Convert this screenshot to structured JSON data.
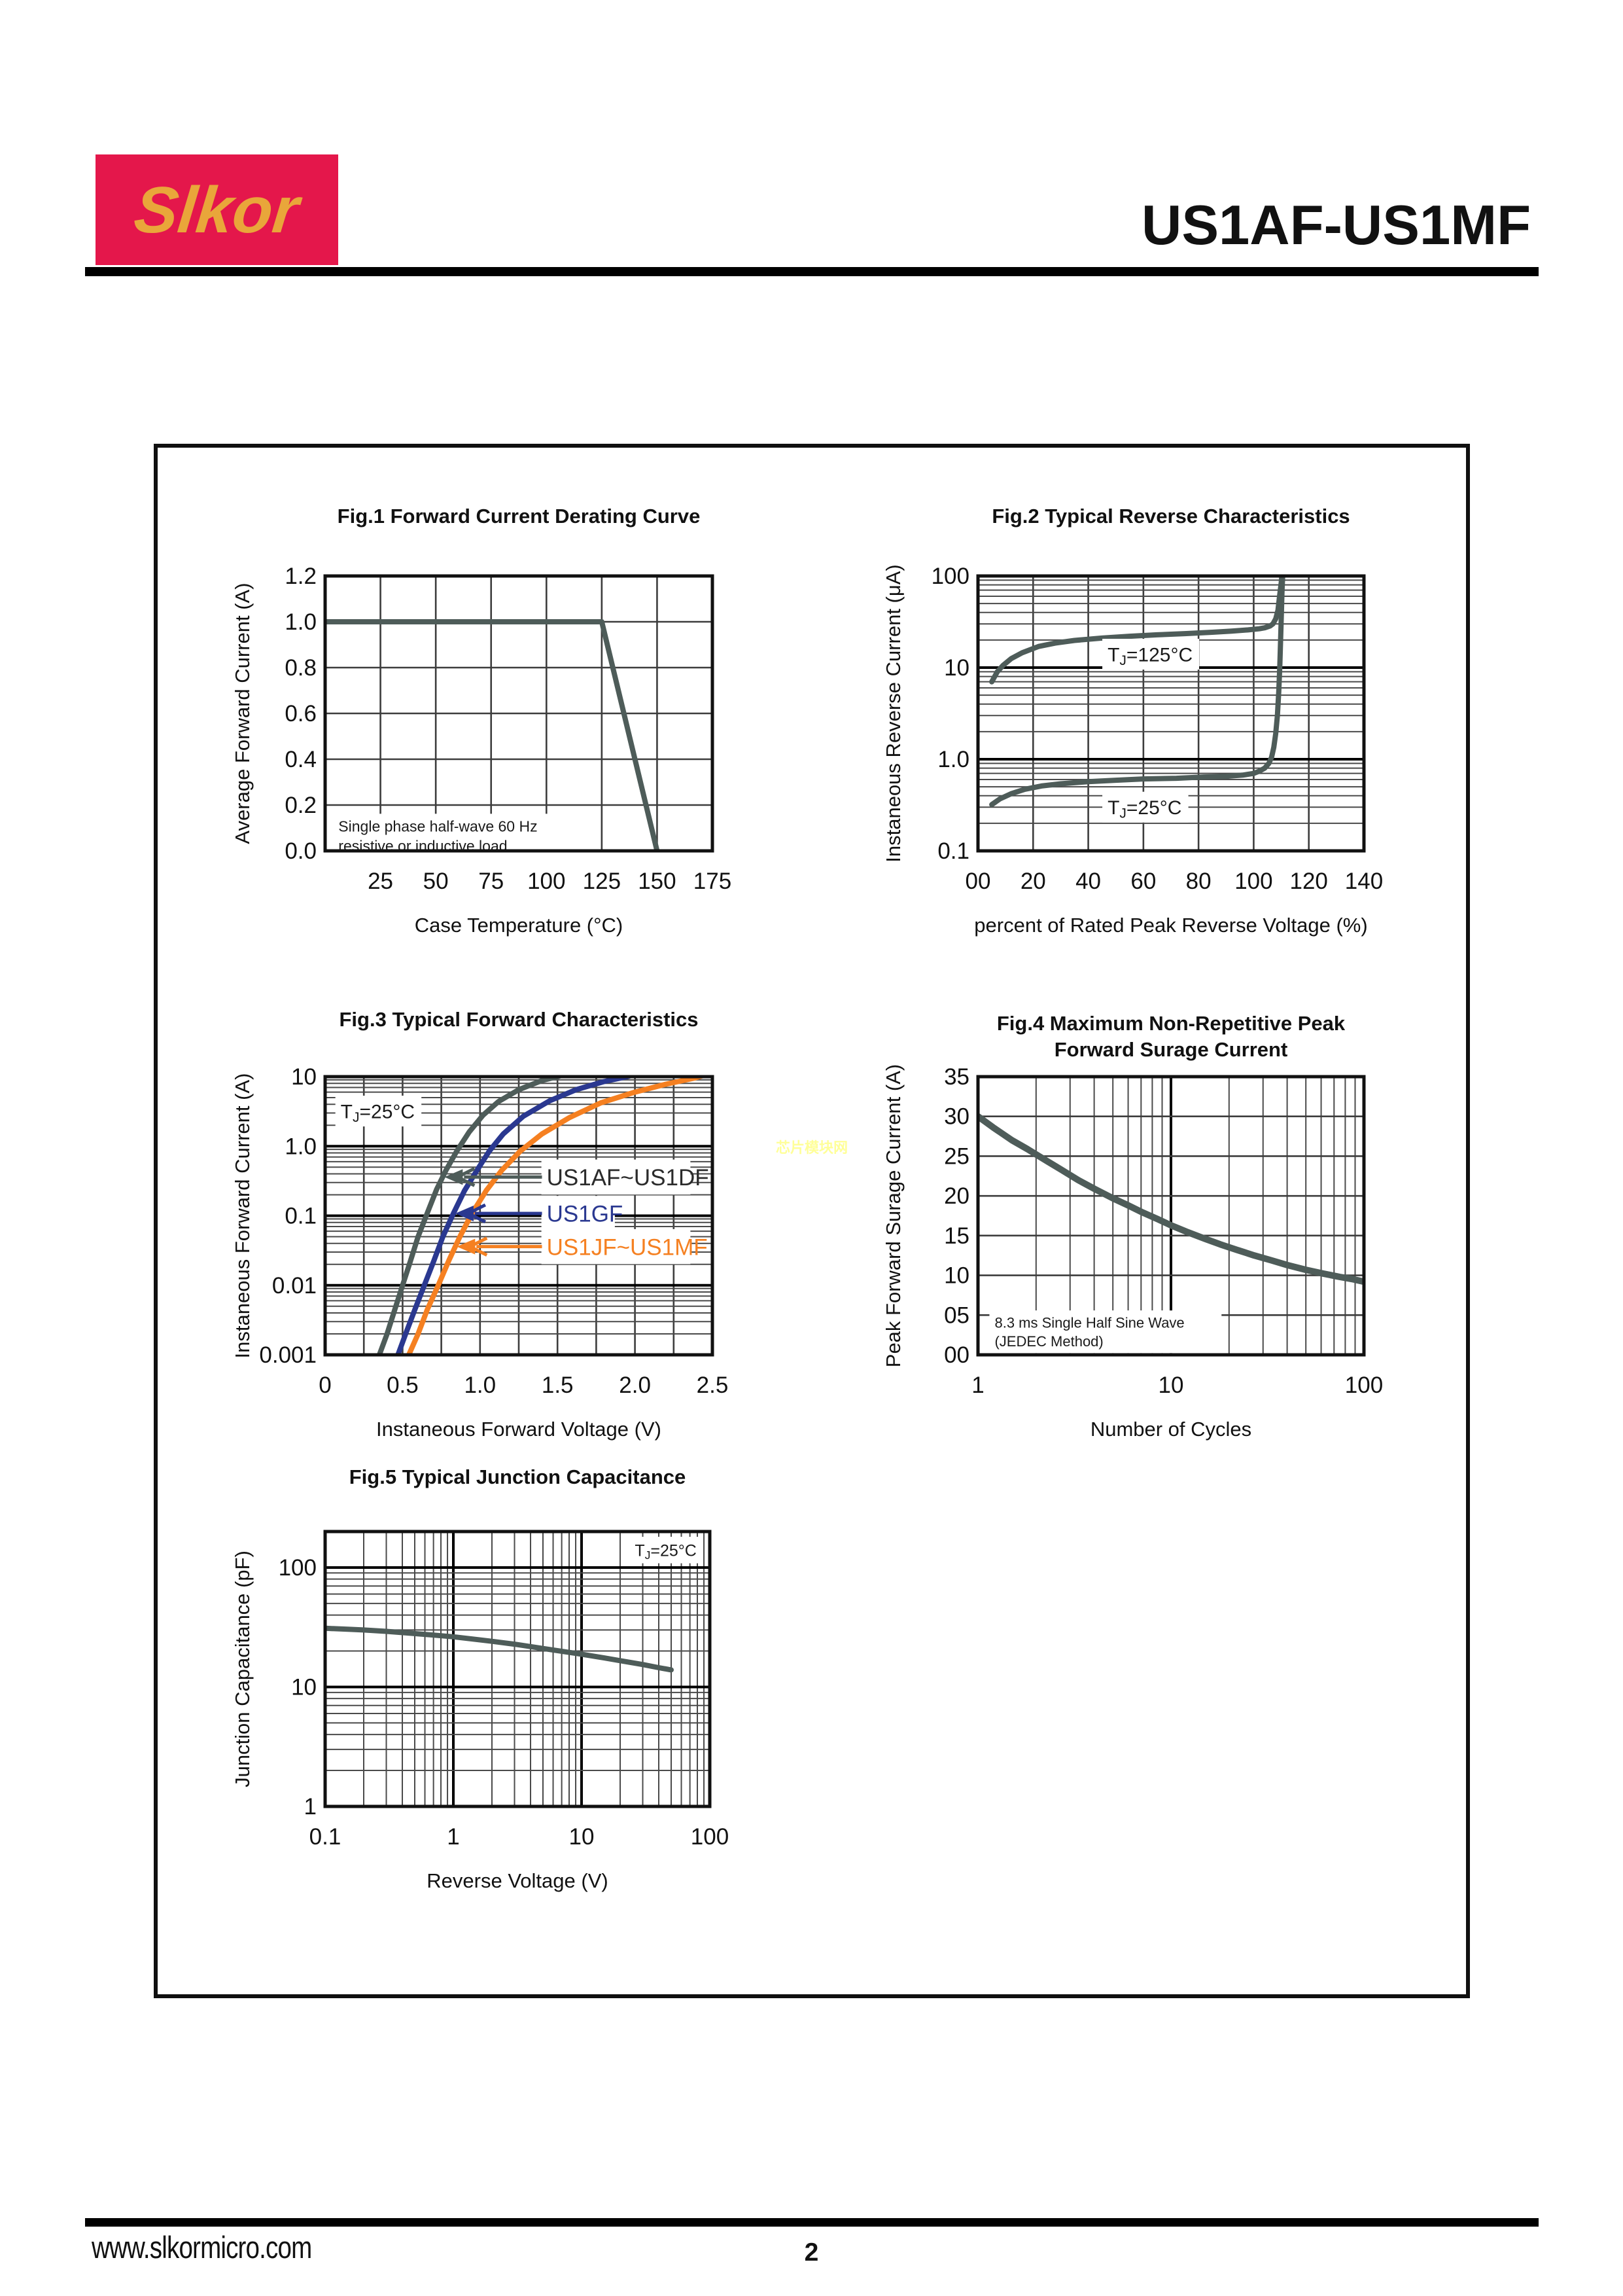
{
  "page": {
    "header": {
      "logo_text": "Slkor",
      "title": "US1AF-US1MF"
    },
    "footer": {
      "website": "www.slkormicro.com",
      "page_number": "2"
    },
    "watermark": "芯片模块网",
    "colors": {
      "logo_red": "#E4174B",
      "logo_yellow": "#E9A63A",
      "curve_dark": "#4E5C59",
      "curve_blue": "#2A3890",
      "curve_orange": "#F58021",
      "grid_medium": "#3D3D3D",
      "grid_minor": "#4A4A4A",
      "decade_line": "#000000",
      "watermark_yellow": "#FFFF99"
    }
  },
  "chart_data": [
    {
      "id": "fig1",
      "type": "line",
      "title_lines": [
        "Fig.1  Forward Current Derating Curve"
      ],
      "x": {
        "scale": "linear",
        "min": 0,
        "max": 175,
        "grid_step": 25,
        "title": "Case Temperature (°C)",
        "ticks": [
          [
            25,
            "25"
          ],
          [
            50,
            "50"
          ],
          [
            75,
            "75"
          ],
          [
            100,
            "100"
          ],
          [
            125,
            "125"
          ],
          [
            150,
            "150"
          ],
          [
            175,
            "175"
          ]
        ]
      },
      "y": {
        "scale": "linear",
        "min": 0,
        "max": 1.2,
        "grid_step": 0.2,
        "title": "Average Forward Current  (A)",
        "ticks": [
          [
            0,
            "0.0"
          ],
          [
            0.2,
            "0.2"
          ],
          [
            0.4,
            "0.4"
          ],
          [
            0.6,
            "0.6"
          ],
          [
            0.8,
            "0.8"
          ],
          [
            1.0,
            "1.0"
          ],
          [
            1.2,
            "1.2"
          ]
        ]
      },
      "series": [
        {
          "name": "average-forward-current",
          "color": "#4E5C59",
          "width": 8,
          "points": [
            [
              0,
              1.0
            ],
            [
              125,
              1.0
            ],
            [
              150,
              0
            ]
          ]
        }
      ],
      "annotations": [
        {
          "lines": [
            "Single phase half-wave 60 Hz",
            "resistive or inductive load"
          ],
          "x": 6,
          "y": 0.065,
          "size": 23,
          "bg": true
        }
      ]
    },
    {
      "id": "fig2",
      "type": "line",
      "title_lines": [
        "Fig.2  Typical Reverse Characteristics"
      ],
      "x": {
        "scale": "linear",
        "min": 0,
        "max": 140,
        "grid_step": 20,
        "title": "percent of Rated  Peak Reverse Voltage (%)",
        "ticks": [
          [
            0,
            "00"
          ],
          [
            20,
            "20"
          ],
          [
            40,
            "40"
          ],
          [
            60,
            "60"
          ],
          [
            80,
            "80"
          ],
          [
            100,
            "100"
          ],
          [
            120,
            "120"
          ],
          [
            140,
            "140"
          ]
        ]
      },
      "y": {
        "scale": "log",
        "min": 0.1,
        "max": 100,
        "title": "Instaneous Reverse Current (μA)",
        "ticks": [
          [
            100,
            "100"
          ],
          [
            10,
            "10"
          ],
          [
            1,
            "1.0"
          ],
          [
            0.1,
            "0.1"
          ]
        ]
      },
      "series": [
        {
          "name": "reverse-current-tj-125c",
          "color": "#4E5C59",
          "width": 8,
          "points": [
            [
              5,
              7
            ],
            [
              7,
              9
            ],
            [
              9,
              10.5
            ],
            [
              12,
              12.5
            ],
            [
              16,
              14.5
            ],
            [
              22,
              17
            ],
            [
              28,
              18.5
            ],
            [
              35,
              19.8
            ],
            [
              45,
              21
            ],
            [
              55,
              22
            ],
            [
              65,
              22.8
            ],
            [
              75,
              23.5
            ],
            [
              85,
              24.3
            ],
            [
              92,
              25
            ],
            [
              98,
              25.8
            ],
            [
              102,
              26.5
            ],
            [
              104,
              27.2
            ],
            [
              106,
              28.5
            ],
            [
              107,
              30
            ],
            [
              108,
              34
            ],
            [
              108.8,
              42
            ],
            [
              109.4,
              60
            ],
            [
              110,
              85
            ],
            [
              110.4,
              115
            ]
          ]
        },
        {
          "name": "reverse-current-tj-25c",
          "color": "#4E5C59",
          "width": 8,
          "points": [
            [
              5,
              0.32
            ],
            [
              8,
              0.37
            ],
            [
              12,
              0.42
            ],
            [
              17,
              0.47
            ],
            [
              23,
              0.51
            ],
            [
              30,
              0.54
            ],
            [
              40,
              0.57
            ],
            [
              50,
              0.59
            ],
            [
              60,
              0.61
            ],
            [
              72,
              0.62
            ],
            [
              82,
              0.64
            ],
            [
              90,
              0.65
            ],
            [
              96,
              0.67
            ],
            [
              100,
              0.7
            ],
            [
              102,
              0.74
            ],
            [
              104,
              0.8
            ],
            [
              105.5,
              0.9
            ],
            [
              106.5,
              1.05
            ],
            [
              107.3,
              1.35
            ],
            [
              108,
              1.9
            ],
            [
              108.6,
              3
            ],
            [
              109.1,
              5.5
            ],
            [
              109.5,
              11
            ],
            [
              109.9,
              28
            ],
            [
              110.3,
              70
            ],
            [
              110.6,
              115
            ]
          ]
        }
      ],
      "annotations": [
        {
          "text": "T_J=125°C",
          "x": 47,
          "y": 14,
          "size": 30,
          "bg": true
        },
        {
          "text": "T_J=25°C",
          "x": 47,
          "y": 0.3,
          "size": 30,
          "bg": true
        }
      ]
    },
    {
      "id": "fig3",
      "type": "line",
      "title_lines": [
        "Fig.3  Typical Forward Characteristics"
      ],
      "x": {
        "scale": "linear",
        "min": 0,
        "max": 2.5,
        "grid_step": 0.25,
        "title": "Instaneous Forward Voltage (V)",
        "ticks": [
          [
            0,
            "0"
          ],
          [
            0.5,
            "0.5"
          ],
          [
            1.0,
            "1.0"
          ],
          [
            1.5,
            "1.5"
          ],
          [
            2.0,
            "2.0"
          ],
          [
            2.5,
            "2.5"
          ]
        ]
      },
      "y": {
        "scale": "log",
        "min": 0.001,
        "max": 10,
        "title": "Instaneous Forward Current (A)",
        "ticks": [
          [
            10,
            "10"
          ],
          [
            1,
            "1.0"
          ],
          [
            0.1,
            "0.1"
          ],
          [
            0.01,
            "0.01"
          ],
          [
            0.001,
            "0.001"
          ]
        ]
      },
      "series": [
        {
          "name": "us1af-us1df",
          "color": "#4E5C59",
          "width": 8,
          "points": [
            [
              0.35,
              0.001
            ],
            [
              0.4,
              0.002
            ],
            [
              0.45,
              0.0045
            ],
            [
              0.5,
              0.01
            ],
            [
              0.55,
              0.022
            ],
            [
              0.6,
              0.05
            ],
            [
              0.66,
              0.11
            ],
            [
              0.72,
              0.24
            ],
            [
              0.78,
              0.45
            ],
            [
              0.85,
              0.85
            ],
            [
              0.93,
              1.6
            ],
            [
              1.02,
              2.8
            ],
            [
              1.12,
              4.4
            ],
            [
              1.25,
              6.5
            ],
            [
              1.4,
              8.8
            ],
            [
              1.5,
              10
            ],
            [
              1.56,
              11
            ]
          ]
        },
        {
          "name": "us1gf",
          "color": "#2A3890",
          "width": 8,
          "points": [
            [
              0.47,
              0.001
            ],
            [
              0.52,
              0.002
            ],
            [
              0.58,
              0.0045
            ],
            [
              0.64,
              0.01
            ],
            [
              0.7,
              0.022
            ],
            [
              0.76,
              0.05
            ],
            [
              0.83,
              0.11
            ],
            [
              0.9,
              0.23
            ],
            [
              0.98,
              0.45
            ],
            [
              1.06,
              0.85
            ],
            [
              1.15,
              1.5
            ],
            [
              1.28,
              2.7
            ],
            [
              1.45,
              4.5
            ],
            [
              1.62,
              6.5
            ],
            [
              1.8,
              8.5
            ],
            [
              1.95,
              10
            ],
            [
              2.0,
              10.8
            ]
          ]
        },
        {
          "name": "us1jf-us1mf",
          "color": "#F58021",
          "width": 8,
          "points": [
            [
              0.54,
              0.001
            ],
            [
              0.6,
              0.002
            ],
            [
              0.66,
              0.0045
            ],
            [
              0.73,
              0.01
            ],
            [
              0.8,
              0.023
            ],
            [
              0.87,
              0.05
            ],
            [
              0.95,
              0.11
            ],
            [
              1.04,
              0.23
            ],
            [
              1.14,
              0.45
            ],
            [
              1.26,
              0.85
            ],
            [
              1.4,
              1.5
            ],
            [
              1.58,
              2.6
            ],
            [
              1.78,
              4.2
            ],
            [
              2.0,
              6.0
            ],
            [
              2.2,
              7.8
            ],
            [
              2.38,
              9.5
            ],
            [
              2.45,
              10.5
            ]
          ]
        }
      ],
      "annotations": [
        {
          "text": "T_J=25°C",
          "x": 0.1,
          "y": 3.2,
          "size": 30,
          "bg": true
        },
        {
          "text": "US1AF~US1DF",
          "x": 1.43,
          "y": 0.36,
          "size": 35,
          "color": "#2B2B2B",
          "bg": true
        },
        {
          "text": "US1GF",
          "x": 1.43,
          "y": 0.108,
          "size": 35,
          "color": "#2A3890",
          "bg": true
        },
        {
          "text": "US1JF~US1MF",
          "x": 1.43,
          "y": 0.036,
          "size": 35,
          "color": "#F58021",
          "bg": true
        }
      ],
      "arrows": [
        {
          "from": [
            1.4,
            0.36
          ],
          "to": [
            0.77,
            0.36
          ],
          "color": "#4E5C59"
        },
        {
          "from": [
            1.4,
            0.108
          ],
          "to": [
            0.84,
            0.108
          ],
          "color": "#2A3890"
        },
        {
          "from": [
            1.4,
            0.036
          ],
          "to": [
            0.85,
            0.036
          ],
          "color": "#F58021"
        }
      ]
    },
    {
      "id": "fig4",
      "type": "line",
      "title_lines": [
        "Fig.4  Maximum Non-Repetitive Peak",
        "Forward Surage Current"
      ],
      "x": {
        "scale": "log",
        "min": 1,
        "max": 100,
        "title": "Number of Cycles",
        "ticks": [
          [
            1,
            "1"
          ],
          [
            10,
            "10"
          ],
          [
            100,
            "100"
          ]
        ]
      },
      "y": {
        "scale": "linear",
        "min": 0,
        "max": 35,
        "grid_step": 5,
        "title": "Peak Forward Surage Current (A)",
        "ticks": [
          [
            0,
            "00"
          ],
          [
            5,
            "05"
          ],
          [
            10,
            "10"
          ],
          [
            15,
            "15"
          ],
          [
            20,
            "20"
          ],
          [
            25,
            "25"
          ],
          [
            30,
            "30"
          ],
          [
            35,
            "35"
          ]
        ]
      },
      "series": [
        {
          "name": "peak-surge-current",
          "color": "#4E5C59",
          "width": 10,
          "points": [
            [
              1,
              30
            ],
            [
              1.2,
              28.6
            ],
            [
              1.5,
              27
            ],
            [
              1.8,
              25.9
            ],
            [
              2.2,
              24.6
            ],
            [
              2.7,
              23.3
            ],
            [
              3.3,
              22
            ],
            [
              4,
              20.9
            ],
            [
              5,
              19.7
            ],
            [
              6,
              18.8
            ],
            [
              7,
              18
            ],
            [
              8.5,
              17.1
            ],
            [
              10,
              16.3
            ],
            [
              12,
              15.5
            ],
            [
              15,
              14.6
            ],
            [
              18,
              13.9
            ],
            [
              22,
              13.2
            ],
            [
              27,
              12.5
            ],
            [
              33,
              11.9
            ],
            [
              40,
              11.3
            ],
            [
              50,
              10.7
            ],
            [
              62,
              10.2
            ],
            [
              75,
              9.8
            ],
            [
              88,
              9.5
            ],
            [
              100,
              9.2
            ]
          ]
        }
      ],
      "annotations": [
        {
          "lines": [
            "8.3 ms Single Half Sine Wave",
            "(JEDEC Method)"
          ],
          "x": 1.22,
          "y": 2.9,
          "size": 22,
          "bg": true
        }
      ]
    },
    {
      "id": "fig5",
      "type": "line",
      "title_lines": [
        "Fig.5  Typical Junction Capacitance"
      ],
      "x": {
        "scale": "log",
        "min": 0.1,
        "max": 100,
        "title": "Reverse  Voltage (V)",
        "ticks": [
          [
            0.1,
            "0.1"
          ],
          [
            1,
            "1"
          ],
          [
            10,
            "10"
          ],
          [
            100,
            "100"
          ]
        ]
      },
      "y": {
        "scale": "log",
        "min": 1,
        "max": 200,
        "title": "Junction Capacitance (pF)",
        "ticks": [
          [
            100,
            "100"
          ],
          [
            10,
            "10"
          ],
          [
            1,
            "1"
          ]
        ]
      },
      "series": [
        {
          "name": "junction-capacitance",
          "color": "#4E5C59",
          "width": 8,
          "points": [
            [
              0.1,
              31
            ],
            [
              0.15,
              30.4
            ],
            [
              0.2,
              30
            ],
            [
              0.3,
              29.2
            ],
            [
              0.5,
              28
            ],
            [
              0.7,
              27.2
            ],
            [
              1,
              26.3
            ],
            [
              1.5,
              25
            ],
            [
              2,
              24.1
            ],
            [
              3,
              22.8
            ],
            [
              5,
              21
            ],
            [
              7,
              19.9
            ],
            [
              10,
              18.8
            ],
            [
              15,
              17.5
            ],
            [
              20,
              16.6
            ],
            [
              30,
              15.4
            ],
            [
              40,
              14.5
            ],
            [
              50,
              13.9
            ]
          ]
        }
      ],
      "annotations": [
        {
          "text": "T_J=25°C",
          "x": 26,
          "y": 140,
          "size": 25,
          "bg": true
        }
      ]
    }
  ]
}
